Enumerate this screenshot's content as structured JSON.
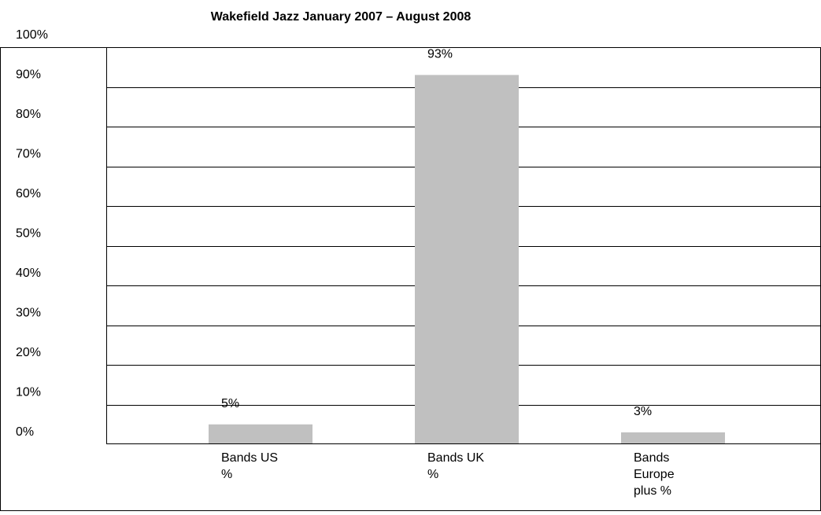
{
  "chart_data": {
    "type": "bar",
    "title": "Wakefield Jazz January 2007 – August 2008",
    "categories": [
      [
        "Bands US",
        "%"
      ],
      [
        "Bands UK",
        "%"
      ],
      [
        "Bands",
        "Europe",
        "plus %"
      ]
    ],
    "values": [
      5,
      93,
      3
    ],
    "data_labels": [
      "5%",
      "93%",
      "3%"
    ],
    "y_ticks": [
      "0%",
      "10%",
      "20%",
      "30%",
      "40%",
      "50%",
      "60%",
      "70%",
      "80%",
      "90%",
      "100%"
    ],
    "ylim": [
      0,
      100
    ],
    "grid": true,
    "legend": "none",
    "colors": {
      "bar": "#c0c0c0",
      "grid": "#000000",
      "border": "#000000"
    }
  }
}
